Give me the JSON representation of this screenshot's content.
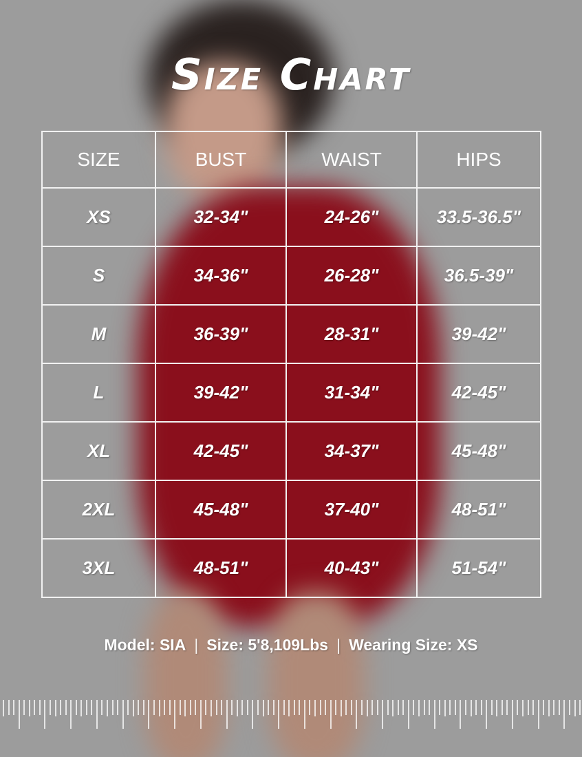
{
  "title": "Size Chart",
  "table": {
    "headers": [
      "SIZE",
      "BUST",
      "WAIST",
      "HIPS"
    ],
    "rows": [
      [
        "XS",
        "32-34\"",
        "24-26\"",
        "33.5-36.5\""
      ],
      [
        "S",
        "34-36\"",
        "26-28\"",
        "36.5-39\""
      ],
      [
        "M",
        "36-39\"",
        "28-31\"",
        "39-42\""
      ],
      [
        "L",
        "39-42\"",
        "31-34\"",
        "42-45\""
      ],
      [
        "XL",
        "42-45\"",
        "34-37\"",
        "45-48\""
      ],
      [
        "2XL",
        "45-48\"",
        "37-40\"",
        "48-51\""
      ],
      [
        "3XL",
        "48-51\"",
        "40-43\"",
        "51-54\""
      ]
    ]
  },
  "footer": {
    "model": "Model: SIA",
    "size": "Size: 5'8,109Lbs",
    "wearing": "Wearing Size: XS",
    "separator": "|"
  },
  "colors": {
    "background": "#9c9c9c",
    "garment": "#8a0f1c",
    "text": "#ffffff"
  }
}
